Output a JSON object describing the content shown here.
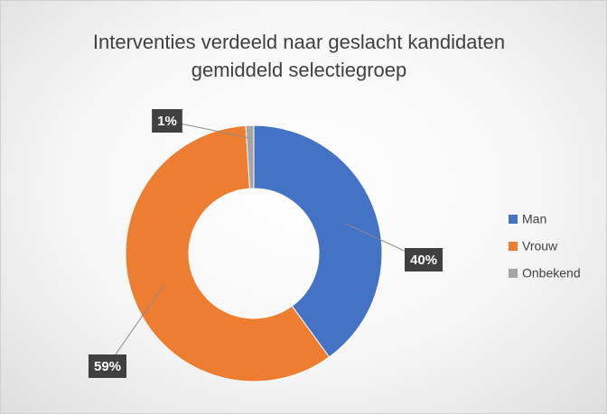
{
  "chart_data": {
    "type": "donut",
    "title": "Interventies verdeeld naar geslacht kandidaten gemiddeld selectiegroep",
    "categories": [
      "Man",
      "Vrouw",
      "Onbekend"
    ],
    "values": [
      40,
      59,
      1
    ],
    "value_labels": [
      "40%",
      "59%",
      "1%"
    ],
    "colors": [
      "#4472c4",
      "#ed7d31",
      "#a5a5a5"
    ],
    "legend": "right"
  }
}
